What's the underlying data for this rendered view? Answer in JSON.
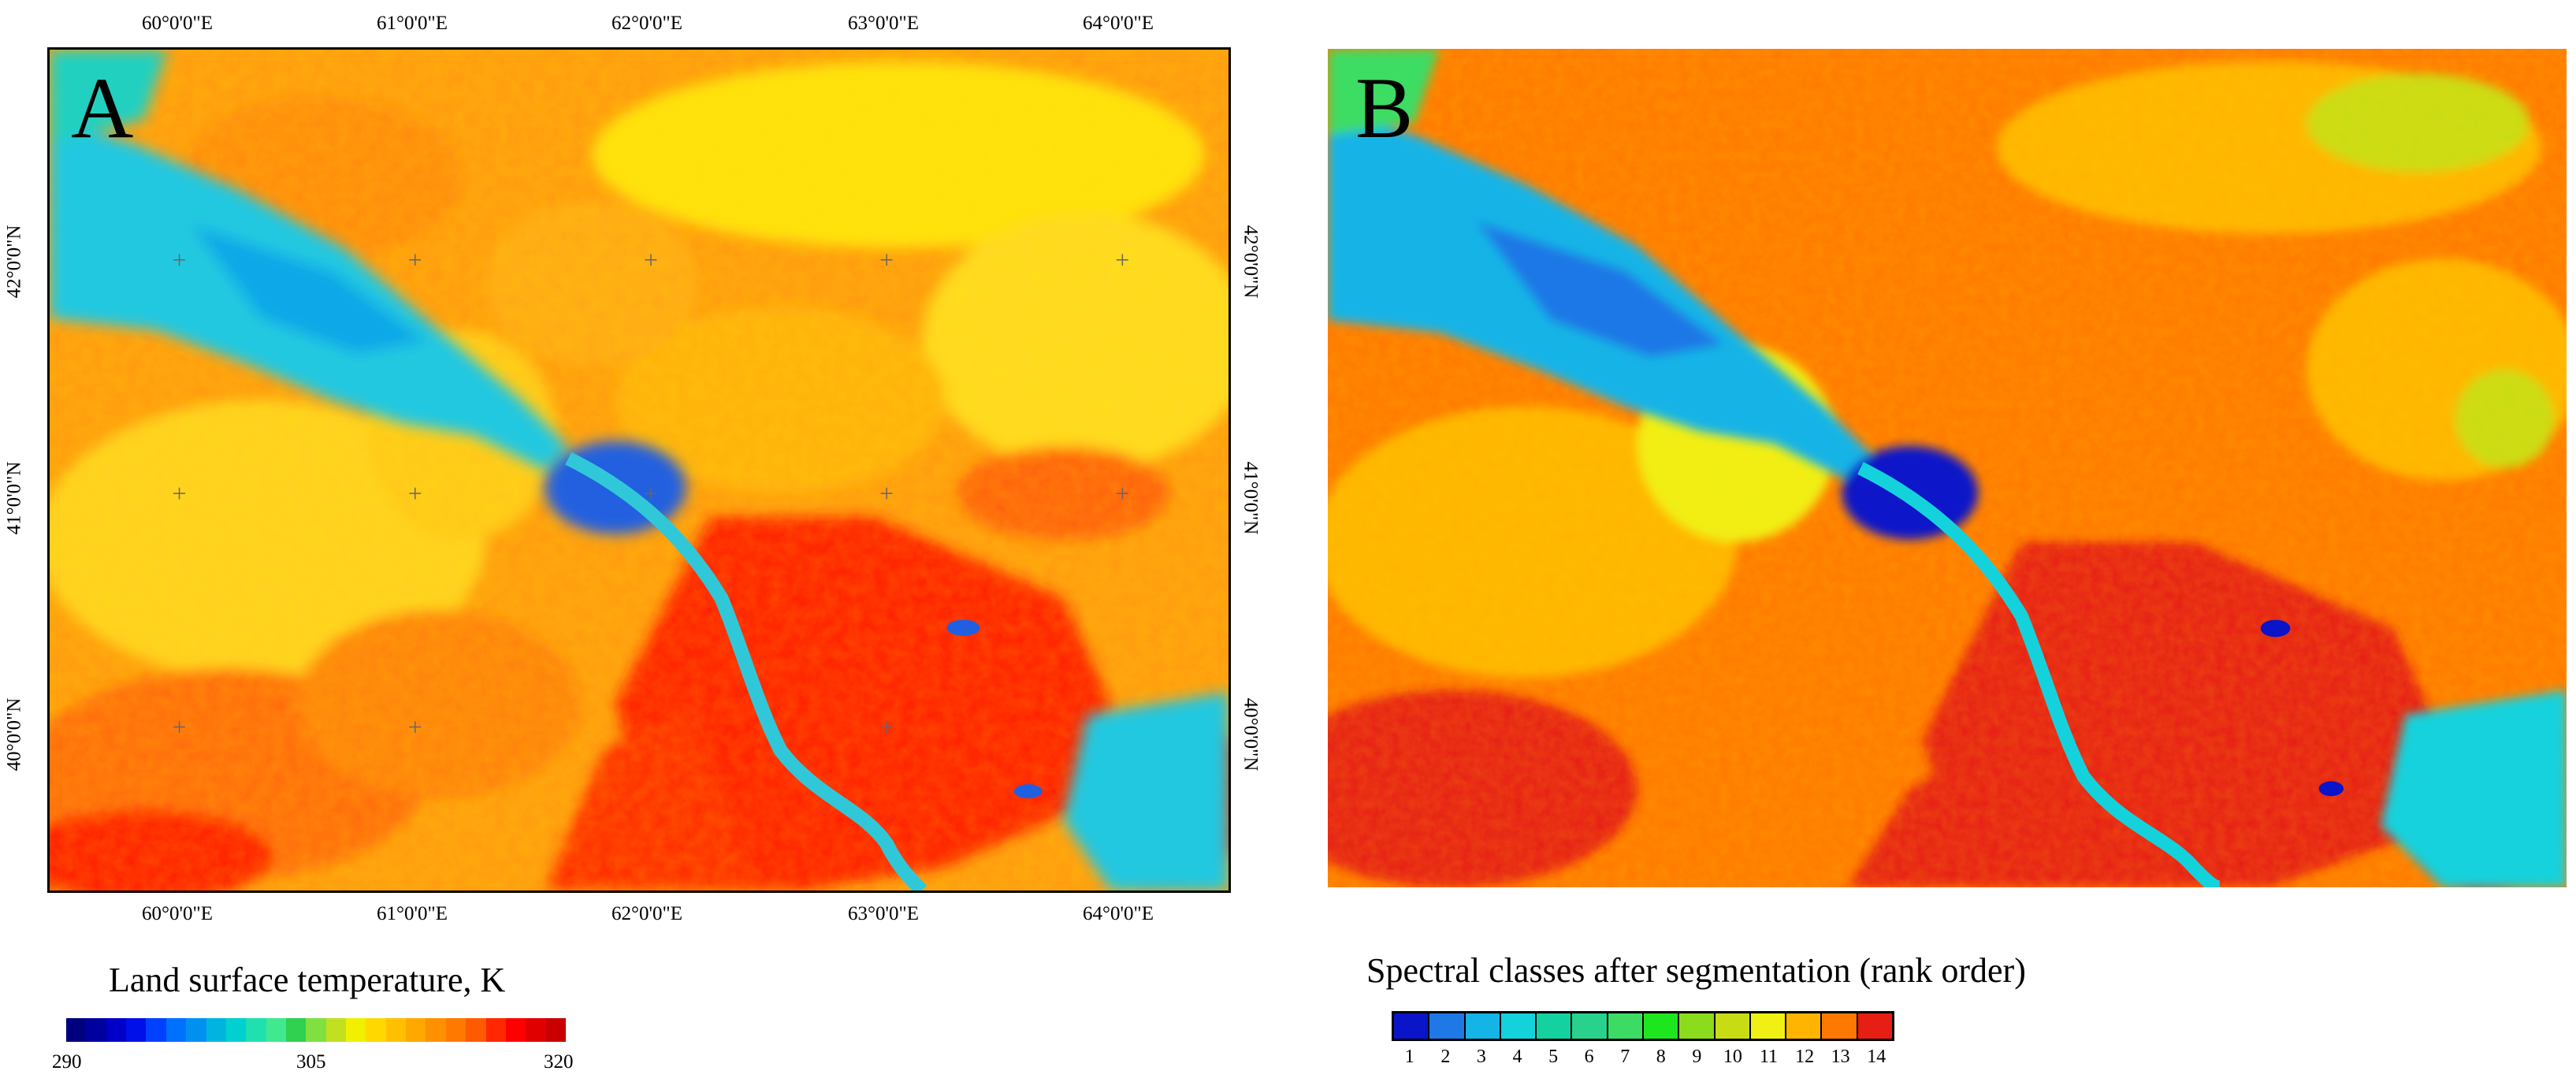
{
  "panel_a": {
    "letter": "A",
    "top_longitudes": [
      "60°0'0\"E",
      "61°0'0\"E",
      "62°0'0\"E",
      "63°0'0\"E",
      "64°0'0\"E"
    ],
    "bottom_longitudes": [
      "60°0'0\"E",
      "61°0'0\"E",
      "62°0'0\"E",
      "63°0'0\"E",
      "64°0'0\"E"
    ],
    "left_latitudes": [
      "42°0'0\"N",
      "41°0'0\"N",
      "40°0'0\"N"
    ],
    "right_latitudes": [
      "42°0'0\"N",
      "41°0'0\"N",
      "40°0'0\"N"
    ]
  },
  "panel_b": {
    "letter": "B"
  },
  "legend_a": {
    "title": "Land surface temperature, K",
    "min_label": "290",
    "mid_label": "305",
    "max_label": "320",
    "colors": [
      "#00007f",
      "#00009f",
      "#0000c8",
      "#0010e8",
      "#0040ff",
      "#0070ff",
      "#0090f0",
      "#00b4e0",
      "#00d0d0",
      "#20e0b0",
      "#40e890",
      "#30d050",
      "#80e040",
      "#c0e020",
      "#f0f000",
      "#ffd800",
      "#ffc000",
      "#ffa800",
      "#ff9000",
      "#ff7800",
      "#ff5a00",
      "#ff2800",
      "#ff0000",
      "#e00000",
      "#c80000"
    ]
  },
  "legend_b": {
    "title": "Spectral classes after segmentation (rank order)",
    "classes": [
      "1",
      "2",
      "3",
      "4",
      "5",
      "6",
      "7",
      "8",
      "9",
      "10",
      "11",
      "12",
      "13",
      "14"
    ],
    "colors": [
      "#0a14c8",
      "#1e78e6",
      "#14b4e6",
      "#14d2dc",
      "#14d2a0",
      "#28d28c",
      "#3cdc64",
      "#1ee61e",
      "#8cdc1e",
      "#c8dc14",
      "#f0f014",
      "#ffb400",
      "#ff7800",
      "#e61e14"
    ]
  }
}
